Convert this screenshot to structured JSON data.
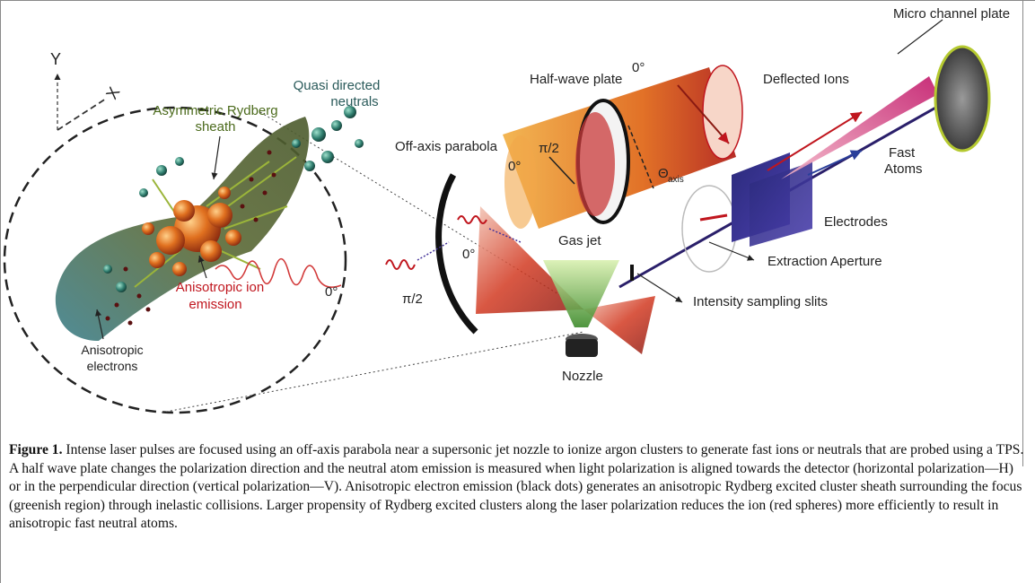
{
  "labels": {
    "quasi_directed_1": "Quasi directed",
    "quasi_directed_2": "neutrals",
    "asym_sheath_1": "Asymmetric Rydberg",
    "asym_sheath_2": "sheath",
    "aniso_ion_1": "Anisotropic ion",
    "aniso_ion_2": "emission",
    "aniso_elec_1": "Anisotropic",
    "aniso_elec_2": "electrons",
    "zero_deg": "0°",
    "pi_half": "π/2",
    "half_wave_plate": "Half-wave plate",
    "off_axis_parabola": "Off-axis parabola",
    "theta": "Θ",
    "theta_sub": "axis",
    "gas_jet": "Gas jet",
    "nozzle": "Nozzle",
    "micro_channel_plate": "Micro channel plate",
    "deflected_ions": "Deflected Ions",
    "fast_atoms_1": "Fast",
    "fast_atoms_2": "Atoms",
    "electrodes": "Electrodes",
    "extraction_aperture": "Extraction  Aperture",
    "intensity_slits": "Intensity sampling  slits",
    "axis_y": "Y",
    "axis_x": "X"
  },
  "caption": {
    "label": "Figure 1.",
    "text": " Intense laser pulses are focused using an off-axis parabola near a supersonic jet nozzle to ionize argon clusters to generate fast ions or neutrals that are probed using a TPS. A half wave plate changes the polarization direction and the neutral atom emission is measured when light polarization is aligned towards the detector (horizontal polarization—H) or in the perpendicular direction (vertical polarization—V). Anisotropic electron emission (black dots) generates an anisotropic Rydberg excited cluster sheath surrounding the focus (greenish region) through inelastic collisions. Larger propensity of Rydberg excited clusters along the laser polarization reduces the ion (red spheres) more efficiently to result in anisotropic fast neutral atoms."
  },
  "colors": {
    "sheath": "#5a6b3a",
    "ion": "#c0392b",
    "neutral": "#2f7d6e",
    "beam": "#e07a1f",
    "mcp_rim": "#b5c930"
  }
}
